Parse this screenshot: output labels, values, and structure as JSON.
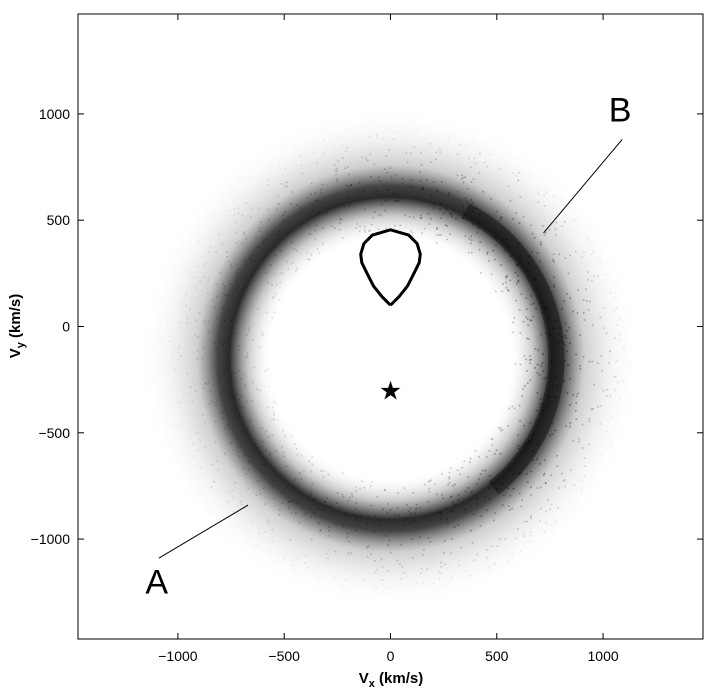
{
  "chart_data": {
    "type": "heatmap",
    "title": "",
    "xlabel": {
      "main": "V",
      "sub": "x",
      "unit": " (km/s)"
    },
    "ylabel": {
      "main": "V",
      "sub": "y",
      "unit": " (km/s)"
    },
    "xlim": [
      -1470,
      1470
    ],
    "ylim": [
      -1470,
      1470
    ],
    "xticks": [
      -1000,
      -500,
      0,
      500,
      1000
    ],
    "yticks": [
      -1000,
      -500,
      0,
      500,
      1000
    ],
    "xtick_labels": [
      "−1000",
      "−500",
      "0",
      "500",
      "1000"
    ],
    "ytick_labels": [
      "−1000",
      "−500",
      "0",
      "500",
      "1000"
    ],
    "colormap": "grayscale (white = low, black = high)",
    "ring": {
      "center": [
        0,
        -150
      ],
      "radius_km_s": 780,
      "thickness_km_s": 220,
      "dark_side": "right",
      "description": "dark annular intensity ring"
    },
    "star_marker": {
      "x": 0,
      "y": -300,
      "symbol": "★"
    },
    "teardrop_contour": {
      "points": [
        [
          0,
          100
        ],
        [
          -40,
          140
        ],
        [
          -80,
          190
        ],
        [
          -110,
          250
        ],
        [
          -135,
          300
        ],
        [
          -140,
          340
        ],
        [
          -125,
          390
        ],
        [
          -85,
          430
        ],
        [
          0,
          455
        ],
        [
          85,
          430
        ],
        [
          125,
          390
        ],
        [
          140,
          340
        ],
        [
          135,
          300
        ],
        [
          110,
          250
        ],
        [
          80,
          190
        ],
        [
          40,
          140
        ],
        [
          0,
          100
        ]
      ]
    },
    "annotations": [
      {
        "label": "A",
        "text_pos": [
          -1100,
          -1200
        ],
        "line_from": [
          -1090,
          -1090
        ],
        "line_to": [
          -670,
          -840
        ]
      },
      {
        "label": "B",
        "text_pos": [
          1080,
          1020
        ],
        "line_from": [
          1090,
          880
        ],
        "line_to": [
          720,
          440
        ]
      }
    ],
    "grid": false,
    "legend": "none"
  }
}
